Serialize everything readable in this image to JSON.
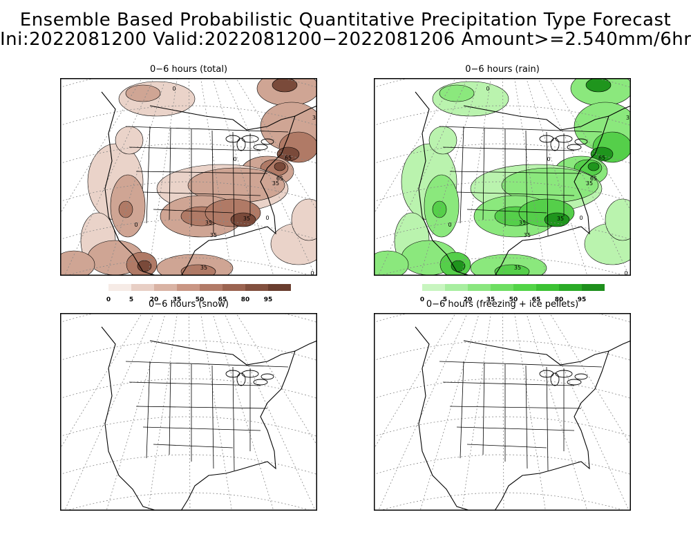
{
  "header": {
    "title_line1": "Ensemble Based Probabilistic Quantitative Precipitation Type Forecast",
    "title_line2": "Ini:2022081200 Valid:2022081200−2022081206 Amount>=2.540mm/6hrs"
  },
  "panels": [
    {
      "title": "0−6 hours (total)",
      "shaded": true,
      "scheme": "brown",
      "contour_labels": [
        "35",
        "35",
        "35",
        "35",
        "65",
        "65",
        "65",
        "65",
        "35",
        "35",
        "0",
        "0",
        "0",
        "0",
        "0"
      ]
    },
    {
      "title": "0−6 hours (rain)",
      "shaded": true,
      "scheme": "green",
      "contour_labels": [
        "35",
        "35",
        "35",
        "35",
        "65",
        "65",
        "65",
        "65",
        "35",
        "35",
        "0",
        "0",
        "0",
        "0",
        "0"
      ]
    },
    {
      "title": "0−6 hours (snow)",
      "shaded": false,
      "scheme": "none",
      "contour_labels": []
    },
    {
      "title": "0−6 hours (freezing + ice pellets)",
      "shaded": false,
      "scheme": "none",
      "contour_labels": []
    }
  ],
  "colorbars": [
    {
      "scheme": "brown",
      "labels": [
        "0",
        "5",
        "20",
        "35",
        "50",
        "65",
        "80",
        "95"
      ],
      "colors": [
        "#f6ebe6",
        "#e8cfc5",
        "#d9b3a4",
        "#c99684",
        "#b27b68",
        "#9b6451",
        "#82503f",
        "#6a3e2f"
      ]
    },
    {
      "scheme": "green",
      "labels": [
        "0",
        "5",
        "20",
        "35",
        "50",
        "65",
        "80",
        "95"
      ],
      "colors": [
        "#c8f5c0",
        "#a8eea0",
        "#8ae67f",
        "#6ede62",
        "#52d447",
        "#3cc234",
        "#2bab27",
        "#1e8f1c"
      ]
    }
  ]
}
